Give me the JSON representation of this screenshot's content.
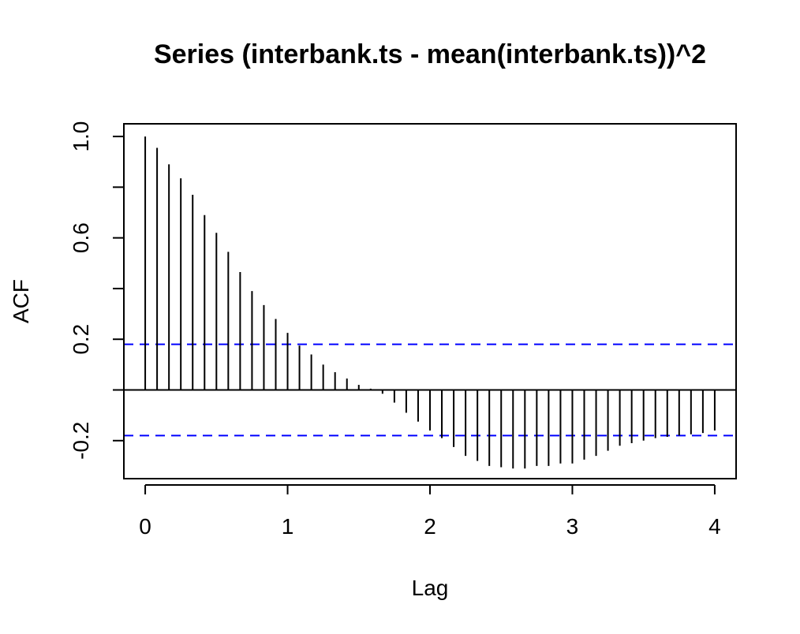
{
  "chart_data": {
    "type": "bar",
    "title": "Series  (interbank.ts - mean(interbank.ts))^2",
    "xlabel": "Lag",
    "ylabel": "ACF",
    "xlim": [
      -0.15,
      4.15
    ],
    "ylim": [
      -0.35,
      1.05
    ],
    "xticks": [
      0,
      1,
      2,
      3,
      4
    ],
    "xtick_labels": [
      "0",
      "1",
      "2",
      "3",
      "4"
    ],
    "yticks": [
      -0.2,
      0,
      0.2,
      0.4,
      0.6,
      0.8,
      1.0
    ],
    "ytick_labels": [
      "-0.2",
      "",
      "0.2",
      "",
      "0.6",
      "",
      "1.0"
    ],
    "confidence_band": 0.18,
    "band_color": "#0000ff",
    "grid": false,
    "x": [
      0,
      0.0833,
      0.1667,
      0.25,
      0.3333,
      0.4167,
      0.5,
      0.5833,
      0.6667,
      0.75,
      0.8333,
      0.9167,
      1.0,
      1.0833,
      1.1667,
      1.25,
      1.3333,
      1.4167,
      1.5,
      1.5833,
      1.6667,
      1.75,
      1.8333,
      1.9167,
      2.0,
      2.0833,
      2.1667,
      2.25,
      2.3333,
      2.4167,
      2.5,
      2.5833,
      2.6667,
      2.75,
      2.8333,
      2.9167,
      3.0,
      3.0833,
      3.1667,
      3.25,
      3.3333,
      3.4167,
      3.5,
      3.5833,
      3.6667,
      3.75,
      3.8333,
      3.9167,
      4.0
    ],
    "values": [
      1.0,
      0.955,
      0.89,
      0.835,
      0.77,
      0.69,
      0.62,
      0.545,
      0.465,
      0.39,
      0.335,
      0.28,
      0.225,
      0.175,
      0.14,
      0.1,
      0.07,
      0.045,
      0.02,
      0.005,
      -0.015,
      -0.05,
      -0.09,
      -0.125,
      -0.16,
      -0.19,
      -0.225,
      -0.26,
      -0.28,
      -0.3,
      -0.305,
      -0.31,
      -0.31,
      -0.3,
      -0.3,
      -0.29,
      -0.29,
      -0.275,
      -0.26,
      -0.24,
      -0.22,
      -0.21,
      -0.2,
      -0.19,
      -0.185,
      -0.18,
      -0.175,
      -0.17,
      -0.16
    ]
  }
}
